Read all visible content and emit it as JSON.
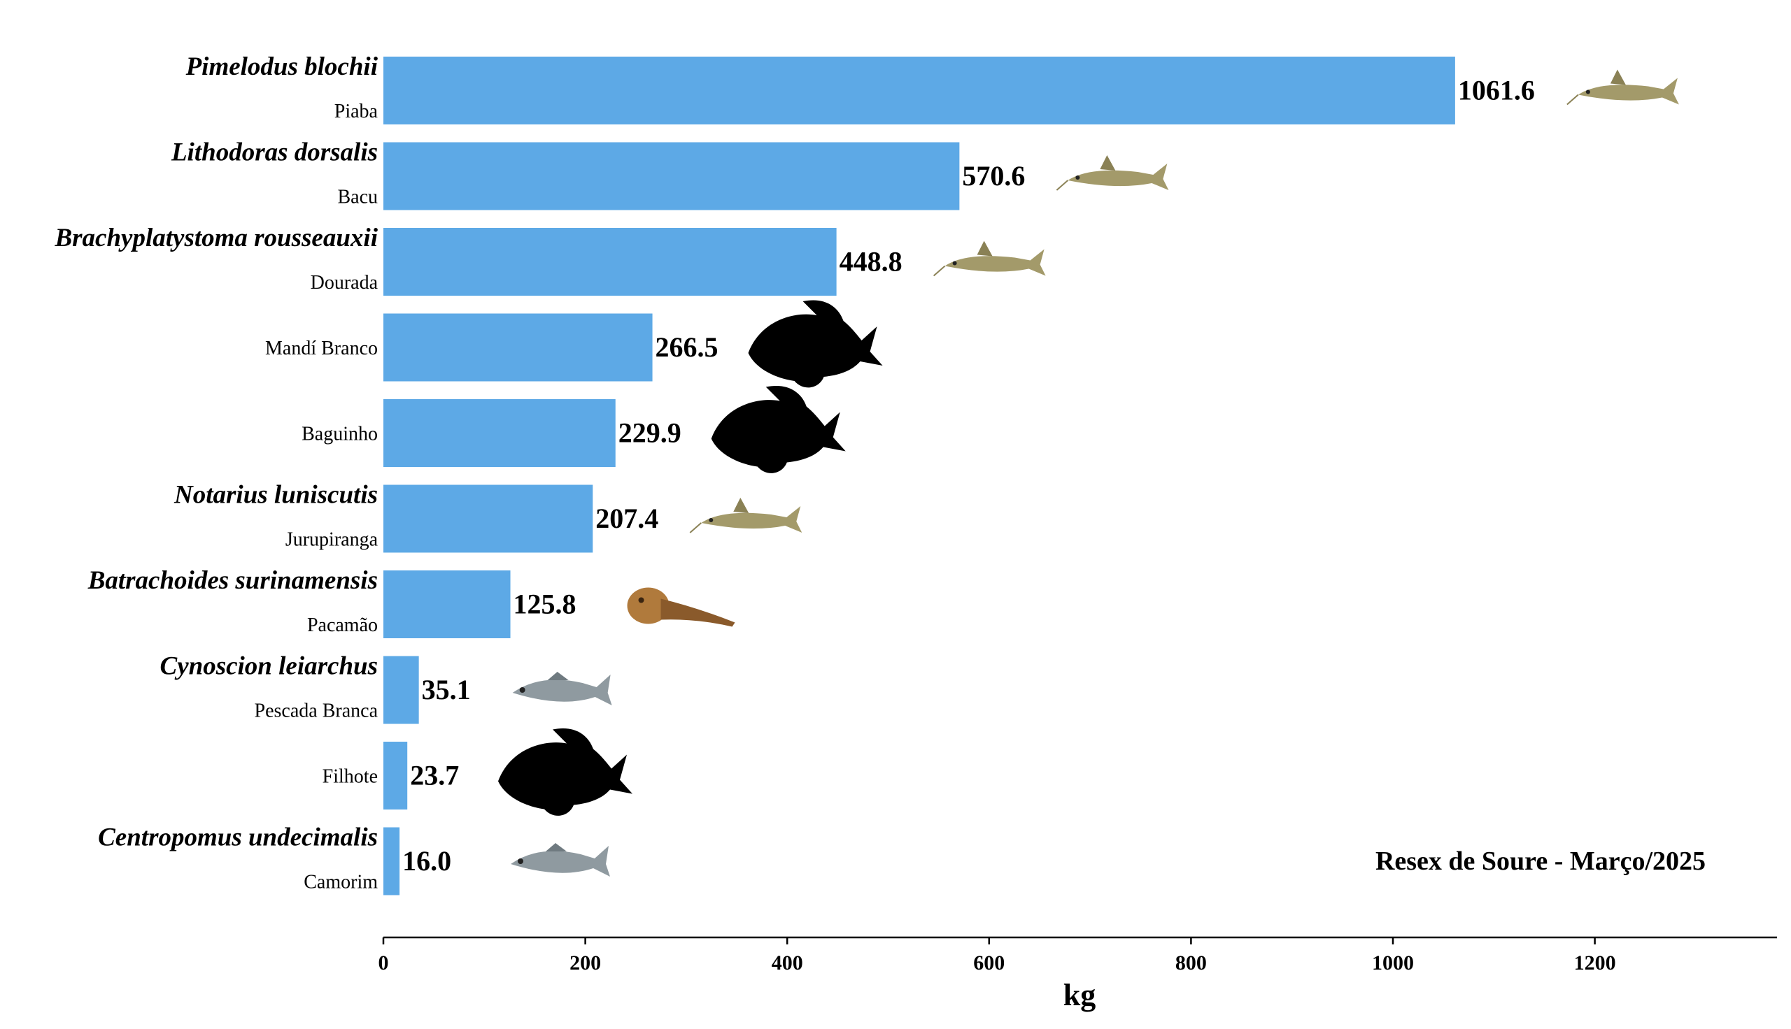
{
  "chart_data": {
    "type": "bar",
    "orientation": "horizontal",
    "bar_color": "#5DA9E6",
    "xlabel": "kg",
    "xlim": [
      0,
      1380
    ],
    "xticks": [
      0,
      200,
      400,
      600,
      800,
      1000,
      1200
    ],
    "annotation": "Resex de Soure - Março/2025",
    "grid": false,
    "categories": [
      {
        "scientific": "Pimelodus blochii",
        "common": "Piaba",
        "value": 1061.6,
        "label": "1061.6",
        "icon": "catfish-photo-icon"
      },
      {
        "scientific": "Lithodoras dorsalis",
        "common": "Bacu",
        "value": 570.6,
        "label": "570.6",
        "icon": "catfish-photo-icon"
      },
      {
        "scientific": "Brachyplatystoma rousseauxii",
        "common": "Dourada",
        "value": 448.8,
        "label": "448.8",
        "icon": "catfish-photo-icon"
      },
      {
        "scientific": "",
        "common": "Mandí Branco",
        "value": 266.5,
        "label": "266.5",
        "icon": "fish-silhouette-icon"
      },
      {
        "scientific": "",
        "common": "Baguinho",
        "value": 229.9,
        "label": "229.9",
        "icon": "fish-silhouette-icon"
      },
      {
        "scientific": "Notarius luniscutis",
        "common": "Jurupiranga",
        "value": 207.4,
        "label": "207.4",
        "icon": "catfish-photo-icon"
      },
      {
        "scientific": "Batrachoides surinamensis",
        "common": "Pacamão",
        "value": 125.8,
        "label": "125.8",
        "icon": "toadfish-photo-icon"
      },
      {
        "scientific": "Cynoscion leiarchus",
        "common": "Pescada Branca",
        "value": 35.1,
        "label": "35.1",
        "icon": "fish-photo-icon"
      },
      {
        "scientific": "",
        "common": "Filhote",
        "value": 23.7,
        "label": "23.7",
        "icon": "fish-silhouette-icon"
      },
      {
        "scientific": "Centropomus undecimalis",
        "common": "Camorim",
        "value": 16.0,
        "label": "16.0",
        "icon": "fish-photo-icon"
      }
    ]
  }
}
